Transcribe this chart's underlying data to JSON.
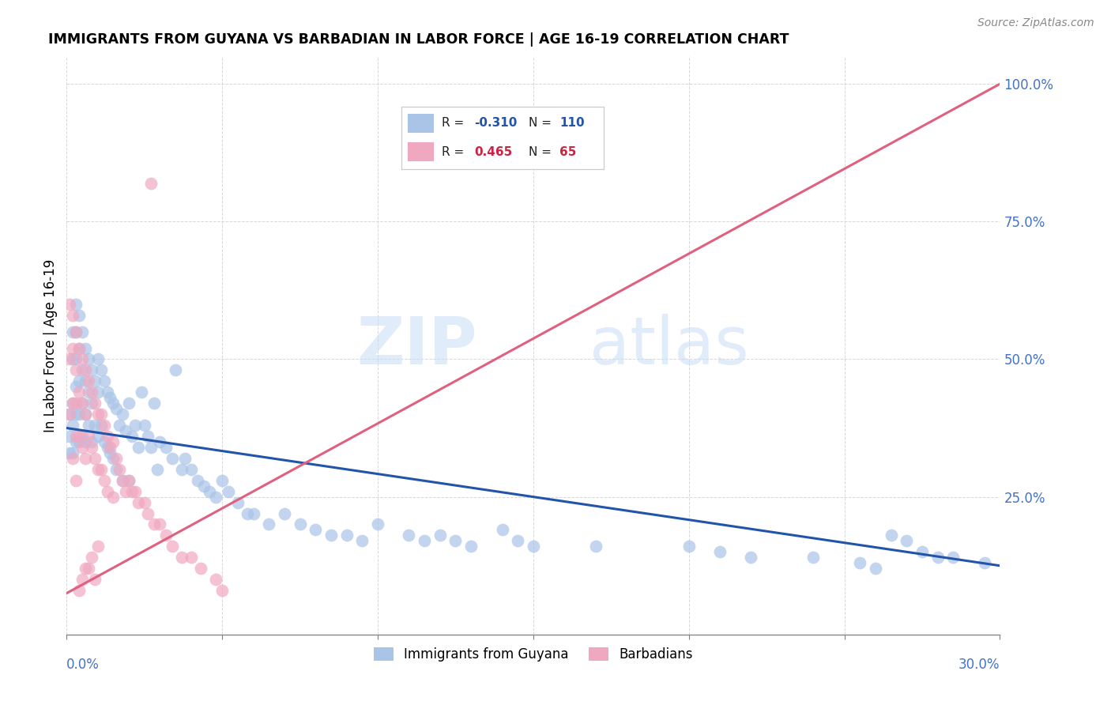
{
  "title": "IMMIGRANTS FROM GUYANA VS BARBADIAN IN LABOR FORCE | AGE 16-19 CORRELATION CHART",
  "source": "Source: ZipAtlas.com",
  "ylabel": "In Labor Force | Age 16-19",
  "ytick_vals": [
    0.0,
    0.25,
    0.5,
    0.75,
    1.0
  ],
  "ytick_labels": [
    "",
    "25.0%",
    "50.0%",
    "75.0%",
    "100.0%"
  ],
  "blue_color": "#aac4e8",
  "pink_color": "#f0a8c0",
  "blue_line_color": "#2255aa",
  "pink_line_color": "#e06080",
  "watermark_zip": "ZIP",
  "watermark_atlas": "atlas",
  "xlim": [
    0.0,
    0.3
  ],
  "ylim": [
    0.0,
    1.05
  ],
  "blue_trend_x": [
    0.0,
    0.3
  ],
  "blue_trend_y": [
    0.375,
    0.125
  ],
  "pink_trend_x": [
    0.0,
    0.3
  ],
  "pink_trend_y": [
    0.075,
    1.0
  ],
  "blue_points_x": [
    0.001,
    0.001,
    0.001,
    0.002,
    0.002,
    0.002,
    0.002,
    0.002,
    0.003,
    0.003,
    0.003,
    0.003,
    0.003,
    0.003,
    0.004,
    0.004,
    0.004,
    0.004,
    0.004,
    0.005,
    0.005,
    0.005,
    0.005,
    0.006,
    0.006,
    0.006,
    0.006,
    0.007,
    0.007,
    0.007,
    0.008,
    0.008,
    0.008,
    0.009,
    0.009,
    0.01,
    0.01,
    0.01,
    0.011,
    0.011,
    0.012,
    0.012,
    0.013,
    0.013,
    0.014,
    0.014,
    0.015,
    0.015,
    0.016,
    0.016,
    0.017,
    0.018,
    0.018,
    0.019,
    0.02,
    0.02,
    0.021,
    0.022,
    0.023,
    0.024,
    0.025,
    0.026,
    0.027,
    0.028,
    0.029,
    0.03,
    0.032,
    0.034,
    0.035,
    0.037,
    0.038,
    0.04,
    0.042,
    0.044,
    0.046,
    0.048,
    0.05,
    0.052,
    0.055,
    0.058,
    0.06,
    0.065,
    0.07,
    0.075,
    0.08,
    0.085,
    0.09,
    0.095,
    0.1,
    0.11,
    0.115,
    0.12,
    0.125,
    0.13,
    0.14,
    0.145,
    0.15,
    0.17,
    0.2,
    0.21,
    0.22,
    0.24,
    0.255,
    0.26,
    0.265,
    0.27,
    0.275,
    0.28,
    0.285,
    0.295
  ],
  "blue_points_y": [
    0.4,
    0.36,
    0.33,
    0.55,
    0.5,
    0.42,
    0.38,
    0.33,
    0.6,
    0.55,
    0.5,
    0.45,
    0.4,
    0.35,
    0.58,
    0.52,
    0.46,
    0.4,
    0.35,
    0.55,
    0.48,
    0.42,
    0.36,
    0.52,
    0.46,
    0.4,
    0.35,
    0.5,
    0.44,
    0.38,
    0.48,
    0.42,
    0.35,
    0.46,
    0.38,
    0.5,
    0.44,
    0.36,
    0.48,
    0.38,
    0.46,
    0.35,
    0.44,
    0.34,
    0.43,
    0.33,
    0.42,
    0.32,
    0.41,
    0.3,
    0.38,
    0.4,
    0.28,
    0.37,
    0.42,
    0.28,
    0.36,
    0.38,
    0.34,
    0.44,
    0.38,
    0.36,
    0.34,
    0.42,
    0.3,
    0.35,
    0.34,
    0.32,
    0.48,
    0.3,
    0.32,
    0.3,
    0.28,
    0.27,
    0.26,
    0.25,
    0.28,
    0.26,
    0.24,
    0.22,
    0.22,
    0.2,
    0.22,
    0.2,
    0.19,
    0.18,
    0.18,
    0.17,
    0.2,
    0.18,
    0.17,
    0.18,
    0.17,
    0.16,
    0.19,
    0.17,
    0.16,
    0.16,
    0.16,
    0.15,
    0.14,
    0.14,
    0.13,
    0.12,
    0.18,
    0.17,
    0.15,
    0.14,
    0.14,
    0.13
  ],
  "pink_points_x": [
    0.001,
    0.001,
    0.001,
    0.002,
    0.002,
    0.002,
    0.002,
    0.003,
    0.003,
    0.003,
    0.003,
    0.003,
    0.004,
    0.004,
    0.004,
    0.005,
    0.005,
    0.005,
    0.006,
    0.006,
    0.006,
    0.007,
    0.007,
    0.008,
    0.008,
    0.009,
    0.009,
    0.01,
    0.01,
    0.011,
    0.011,
    0.012,
    0.012,
    0.013,
    0.013,
    0.014,
    0.015,
    0.015,
    0.016,
    0.017,
    0.018,
    0.019,
    0.02,
    0.021,
    0.022,
    0.023,
    0.025,
    0.026,
    0.028,
    0.03,
    0.032,
    0.034,
    0.037,
    0.04,
    0.043,
    0.048,
    0.05,
    0.027,
    0.01,
    0.008,
    0.006,
    0.005,
    0.004,
    0.007,
    0.009
  ],
  "pink_points_y": [
    0.6,
    0.5,
    0.4,
    0.58,
    0.52,
    0.42,
    0.32,
    0.55,
    0.48,
    0.42,
    0.36,
    0.28,
    0.52,
    0.44,
    0.36,
    0.5,
    0.42,
    0.34,
    0.48,
    0.4,
    0.32,
    0.46,
    0.36,
    0.44,
    0.34,
    0.42,
    0.32,
    0.4,
    0.3,
    0.4,
    0.3,
    0.38,
    0.28,
    0.36,
    0.26,
    0.34,
    0.35,
    0.25,
    0.32,
    0.3,
    0.28,
    0.26,
    0.28,
    0.26,
    0.26,
    0.24,
    0.24,
    0.22,
    0.2,
    0.2,
    0.18,
    0.16,
    0.14,
    0.14,
    0.12,
    0.1,
    0.08,
    0.82,
    0.16,
    0.14,
    0.12,
    0.1,
    0.08,
    0.12,
    0.1
  ]
}
